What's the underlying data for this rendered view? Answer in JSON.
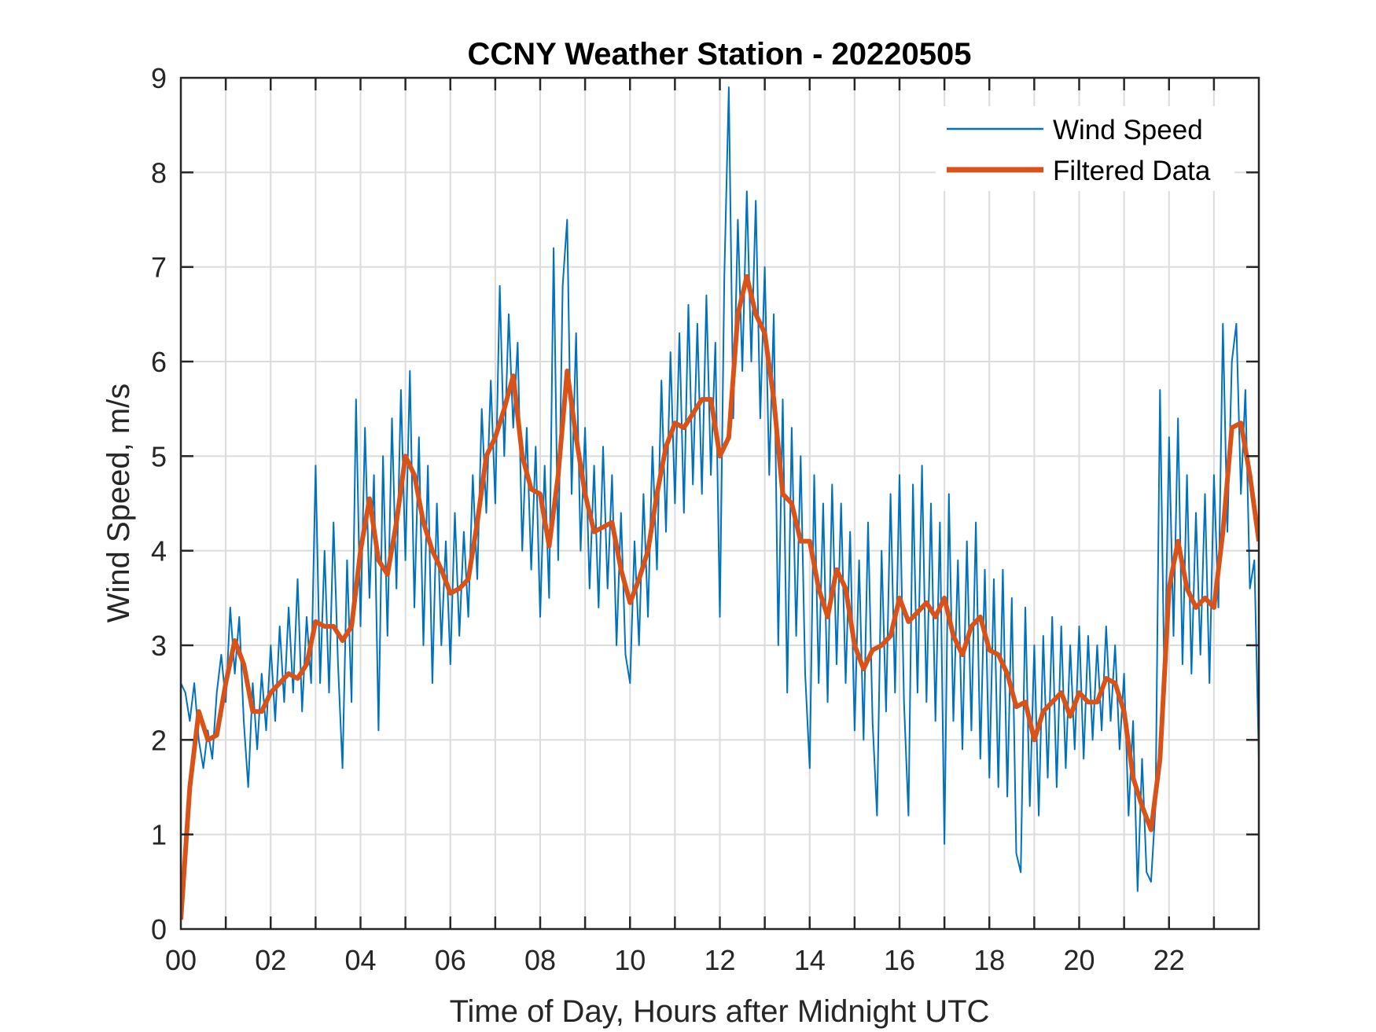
{
  "chart_data": {
    "type": "line",
    "title": "CCNY Weather Station - 20220505",
    "xlabel": "Time of Day, Hours after Midnight UTC",
    "ylabel": "Wind Speed, m/s",
    "xlim": [
      0,
      24
    ],
    "ylim": [
      0,
      9
    ],
    "grid": true,
    "legend_position": "top-right",
    "x_ticks": [
      0,
      2,
      4,
      6,
      8,
      10,
      12,
      14,
      16,
      18,
      20,
      22
    ],
    "x_tick_labels": [
      "00",
      "02",
      "04",
      "06",
      "08",
      "10",
      "12",
      "14",
      "16",
      "18",
      "20",
      "22"
    ],
    "y_ticks": [
      0,
      1,
      2,
      3,
      4,
      5,
      6,
      7,
      8,
      9
    ],
    "y_tick_labels": [
      "0",
      "1",
      "2",
      "3",
      "4",
      "5",
      "6",
      "7",
      "8",
      "9"
    ],
    "series": [
      {
        "name": "Wind Speed",
        "color": "#0072BD",
        "x_start": 0,
        "x_step": 0.1,
        "values": [
          2.6,
          2.5,
          2.2,
          2.6,
          2.0,
          1.7,
          2.1,
          1.8,
          2.5,
          2.9,
          2.4,
          3.4,
          2.7,
          3.3,
          2.2,
          1.5,
          2.6,
          1.9,
          2.7,
          2.1,
          3.0,
          2.2,
          3.2,
          2.4,
          3.4,
          2.5,
          3.7,
          2.3,
          3.3,
          2.6,
          4.9,
          2.6,
          4.0,
          2.5,
          4.3,
          2.8,
          1.7,
          3.9,
          2.4,
          5.6,
          3.2,
          5.3,
          3.5,
          4.8,
          2.1,
          5.0,
          3.1,
          5.4,
          3.6,
          5.7,
          3.9,
          5.9,
          3.4,
          5.2,
          3.0,
          4.9,
          2.6,
          4.5,
          3.0,
          4.1,
          2.8,
          4.4,
          3.1,
          4.2,
          3.3,
          4.8,
          3.7,
          5.5,
          4.4,
          5.8,
          4.5,
          6.8,
          5.0,
          6.5,
          5.3,
          6.2,
          4.0,
          5.3,
          3.8,
          5.1,
          3.3,
          4.9,
          3.5,
          7.2,
          3.9,
          6.8,
          7.5,
          4.6,
          6.3,
          4.0,
          5.3,
          3.6,
          4.9,
          3.4,
          5.1,
          3.6,
          4.8,
          3.0,
          4.4,
          2.9,
          2.6,
          4.1,
          3.0,
          4.6,
          3.3,
          5.1,
          3.8,
          5.8,
          4.2,
          6.1,
          4.5,
          6.3,
          4.4,
          6.6,
          4.7,
          6.4,
          4.6,
          6.7,
          4.8,
          6.2,
          3.3,
          6.9,
          8.9,
          5.4,
          7.5,
          5.9,
          7.8,
          6.0,
          7.7,
          5.4,
          7.0,
          4.8,
          6.5,
          3.0,
          5.6,
          2.5,
          5.3,
          3.1,
          5.0,
          2.7,
          1.7,
          4.8,
          2.6,
          4.5,
          2.4,
          4.7,
          2.8,
          4.5,
          2.6,
          4.2,
          2.1,
          3.9,
          2.0,
          4.3,
          2.2,
          1.2,
          4.0,
          2.3,
          4.6,
          2.5,
          4.8,
          2.4,
          1.2,
          4.7,
          2.5,
          4.9,
          2.4,
          4.5,
          2.2,
          4.3,
          0.9,
          4.6,
          2.2,
          3.9,
          1.9,
          4.1,
          2.1,
          4.3,
          1.8,
          3.8,
          1.6,
          3.7,
          1.5,
          3.8,
          1.4,
          3.5,
          0.8,
          0.6,
          3.4,
          1.3,
          3.0,
          1.2,
          3.1,
          1.6,
          3.3,
          1.5,
          3.2,
          1.7,
          3.0,
          1.9,
          3.2,
          1.8,
          3.1,
          2.0,
          3.0,
          2.1,
          3.2,
          2.2,
          3.0,
          1.9,
          2.7,
          1.2,
          2.2,
          0.4,
          1.8,
          0.6,
          0.5,
          1.3,
          5.7,
          2.5,
          5.2,
          3.1,
          5.4,
          2.8,
          4.8,
          2.7,
          4.4,
          2.9,
          4.6,
          2.6,
          4.8,
          3.4,
          6.4,
          4.2,
          6.0,
          6.4,
          4.6,
          5.7,
          3.6,
          3.9,
          1.8
        ]
      },
      {
        "name": "Filtered Data",
        "color": "#D95319",
        "x_start": 0,
        "x_step": 0.2,
        "values": [
          0.1,
          1.5,
          2.3,
          2.0,
          2.05,
          2.6,
          3.05,
          2.8,
          2.3,
          2.3,
          2.5,
          2.6,
          2.7,
          2.65,
          2.8,
          3.25,
          3.2,
          3.2,
          3.05,
          3.2,
          4.0,
          4.55,
          3.9,
          3.75,
          4.3,
          5.0,
          4.8,
          4.3,
          4.0,
          3.8,
          3.55,
          3.6,
          3.7,
          4.3,
          5.0,
          5.2,
          5.5,
          5.85,
          5.0,
          4.65,
          4.6,
          4.05,
          4.8,
          5.9,
          5.2,
          4.6,
          4.2,
          4.25,
          4.3,
          3.8,
          3.45,
          3.7,
          4.0,
          4.6,
          5.1,
          5.35,
          5.3,
          5.45,
          5.6,
          5.6,
          5.0,
          5.2,
          6.5,
          6.9,
          6.5,
          6.3,
          5.6,
          4.6,
          4.5,
          4.1,
          4.1,
          3.6,
          3.3,
          3.8,
          3.6,
          3.0,
          2.75,
          2.95,
          3.0,
          3.1,
          3.5,
          3.25,
          3.35,
          3.45,
          3.3,
          3.5,
          3.1,
          2.9,
          3.2,
          3.3,
          2.95,
          2.9,
          2.7,
          2.35,
          2.4,
          2.0,
          2.3,
          2.4,
          2.5,
          2.25,
          2.5,
          2.4,
          2.4,
          2.65,
          2.6,
          2.3,
          1.6,
          1.3,
          1.05,
          1.8,
          3.6,
          4.1,
          3.6,
          3.4,
          3.5,
          3.4,
          4.2,
          5.3,
          5.35,
          4.8,
          4.1
        ]
      }
    ]
  }
}
